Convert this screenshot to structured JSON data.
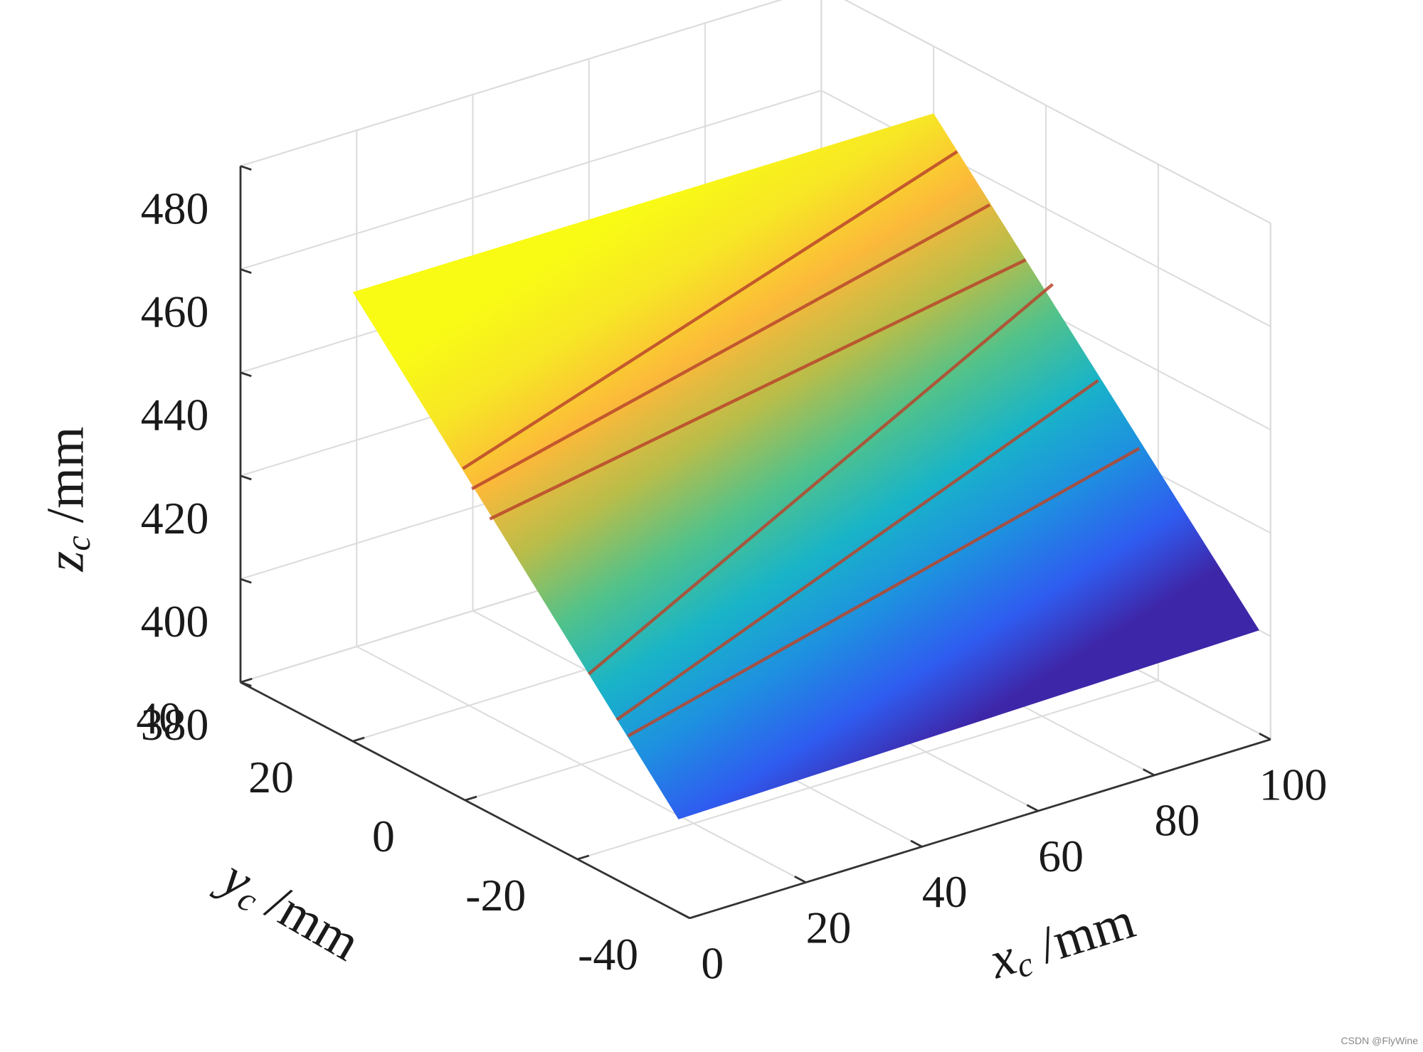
{
  "chart_data": {
    "type": "surface",
    "xlabel": {
      "symbol": "x",
      "sub": "c",
      "unit": "/mm"
    },
    "ylabel": {
      "symbol": "y",
      "sub": "c",
      "unit": "/mm"
    },
    "zlabel": {
      "symbol": "z",
      "sub": "c",
      "unit": "/mm"
    },
    "xlim": [
      0,
      100
    ],
    "xticks": [
      0,
      20,
      40,
      60,
      80,
      100
    ],
    "ylim": [
      -40,
      40
    ],
    "yticks": [
      -40,
      -20,
      0,
      20,
      40
    ],
    "zlim": [
      380,
      480
    ],
    "zticks": [
      380,
      400,
      420,
      440,
      460,
      480
    ],
    "grid": true,
    "colormap": [
      "#3e26a8",
      "#2f5cf0",
      "#1e90e0",
      "#19b4c8",
      "#52c28a",
      "#b8bd4a",
      "#fcb93a",
      "#f7e625",
      "#f9fb15"
    ],
    "surface": {
      "x": [
        0,
        100
      ],
      "y": [
        -38,
        20
      ],
      "z": [
        [
          398,
          400
        ],
        [
          467,
          467
        ]
      ]
    },
    "lines": [
      {
        "color": "#b8452c",
        "x": [
          0,
          100
        ],
        "y": [
          0.4,
          15.8
        ],
        "z": [
          444,
          462
        ]
      },
      {
        "color": "#b8452c",
        "x": [
          0,
          100
        ],
        "y": [
          -1.2,
          10
        ],
        "z": [
          441,
          455
        ]
      },
      {
        "color": "#b8452c",
        "x": [
          0,
          100
        ],
        "y": [
          -4.4,
          3.6
        ],
        "z": [
          437,
          448
        ]
      },
      {
        "color": "#b8452c",
        "x": [
          0,
          100
        ],
        "y": [
          -22,
          -1.2
        ],
        "z": [
          417,
          446
        ]
      },
      {
        "color": "#b8452c",
        "x": [
          0,
          100
        ],
        "y": [
          -27,
          -9.3
        ],
        "z": [
          411,
          432
        ]
      },
      {
        "color": "#b8452c",
        "x": [
          0,
          100
        ],
        "y": [
          -29,
          -16.6
        ],
        "z": [
          409,
          423
        ]
      }
    ]
  },
  "watermark": "CSDN @FlyWine"
}
